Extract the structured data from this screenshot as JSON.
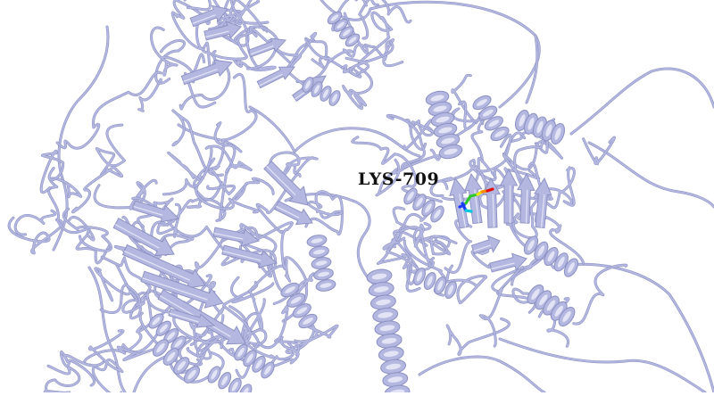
{
  "viewer": {
    "background_color": "#ffffff",
    "cartoon_color": "#b4b8e0",
    "cartoon_shadow_color": "#8f93c4",
    "cartoon_highlight_color": "#e2e4f5"
  },
  "highlighted_residue": {
    "label": "LYS-709",
    "stick_colors": [
      "#1a3cff",
      "#00c8e0",
      "#2ec82e",
      "#e8e800",
      "#ff8c00",
      "#e01010"
    ]
  }
}
